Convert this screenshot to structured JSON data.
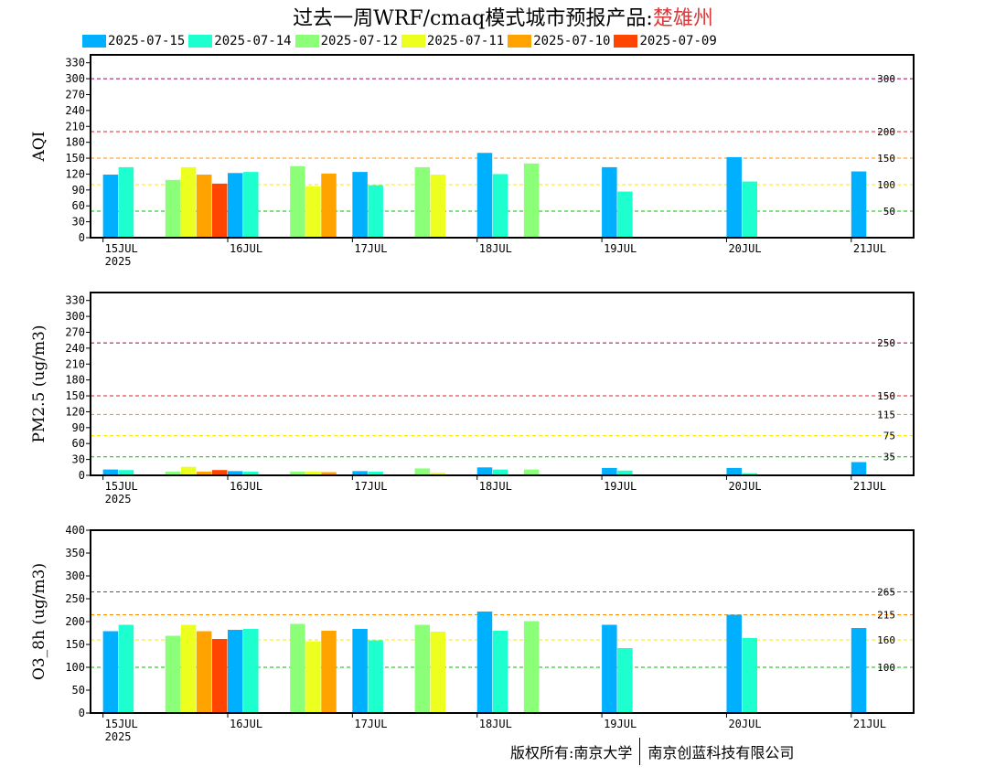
{
  "title": {
    "main": "过去一周WRF/cmaq模式城市预报产品:",
    "city": "楚雄州"
  },
  "legend": [
    {
      "label": "2025-07-15",
      "color": "#00b0ff"
    },
    {
      "label": "2025-07-14",
      "color": "#1effd0"
    },
    {
      "label": "2025-07-12",
      "color": "#8cff78"
    },
    {
      "label": "2025-07-11",
      "color": "#ecff1e"
    },
    {
      "label": "2025-07-10",
      "color": "#ffa300"
    },
    {
      "label": "2025-07-09",
      "color": "#ff4500"
    }
  ],
  "copyright": {
    "left": "版权所有:南京大学",
    "right": "南京创蓝科技有限公司"
  },
  "chart_data": [
    {
      "type": "bar",
      "ylabel": "AQI",
      "ylim": [
        0,
        345
      ],
      "yticks": [
        0,
        30,
        60,
        90,
        120,
        150,
        180,
        210,
        240,
        270,
        300,
        330
      ],
      "xlim": [
        -0.1,
        6.5
      ],
      "xticks": [
        {
          "x": 0,
          "label": "15JUL",
          "sub": "2025"
        },
        {
          "x": 1,
          "label": "16JUL"
        },
        {
          "x": 2,
          "label": "17JUL"
        },
        {
          "x": 3,
          "label": "18JUL"
        },
        {
          "x": 4,
          "label": "19JUL"
        },
        {
          "x": 5,
          "label": "20JUL"
        },
        {
          "x": 6,
          "label": "21JUL"
        }
      ],
      "thresholds": [
        {
          "value": 50,
          "color": "#00c000",
          "label": "50"
        },
        {
          "value": 100,
          "color": "#ffe600",
          "label": "100"
        },
        {
          "value": 150,
          "color": "#ff8c00",
          "label": "150"
        },
        {
          "value": 200,
          "color": "#e02020",
          "label": "200"
        },
        {
          "value": 300,
          "color": "#a0005a",
          "label": "300"
        }
      ],
      "bars": [
        {
          "x": 0.0,
          "series": 0,
          "value": 119
        },
        {
          "x": 0.125,
          "series": 1,
          "value": 133
        },
        {
          "x": 0.5,
          "series": 2,
          "value": 109
        },
        {
          "x": 0.625,
          "series": 3,
          "value": 133
        },
        {
          "x": 0.75,
          "series": 4,
          "value": 119
        },
        {
          "x": 0.875,
          "series": 5,
          "value": 102
        },
        {
          "x": 1.0,
          "series": 0,
          "value": 122
        },
        {
          "x": 1.125,
          "series": 1,
          "value": 124
        },
        {
          "x": 1.5,
          "series": 2,
          "value": 135
        },
        {
          "x": 1.625,
          "series": 3,
          "value": 97
        },
        {
          "x": 1.75,
          "series": 4,
          "value": 121
        },
        {
          "x": 2.0,
          "series": 0,
          "value": 124
        },
        {
          "x": 2.125,
          "series": 1,
          "value": 99
        },
        {
          "x": 2.5,
          "series": 2,
          "value": 133
        },
        {
          "x": 2.625,
          "series": 3,
          "value": 119
        },
        {
          "x": 3.0,
          "series": 0,
          "value": 160
        },
        {
          "x": 3.125,
          "series": 1,
          "value": 120
        },
        {
          "x": 3.375,
          "series": 2,
          "value": 140
        },
        {
          "x": 4.0,
          "series": 0,
          "value": 133
        },
        {
          "x": 4.125,
          "series": 1,
          "value": 87
        },
        {
          "x": 5.0,
          "series": 0,
          "value": 152
        },
        {
          "x": 5.125,
          "series": 1,
          "value": 106
        },
        {
          "x": 6.0,
          "series": 0,
          "value": 125
        }
      ]
    },
    {
      "type": "bar",
      "ylabel": "PM2.5 (ug/m3)",
      "ylim": [
        0,
        345
      ],
      "yticks": [
        0,
        30,
        60,
        90,
        120,
        150,
        180,
        210,
        240,
        270,
        300,
        330
      ],
      "xlim": [
        -0.1,
        6.5
      ],
      "xticks": [
        {
          "x": 0,
          "label": "15JUL",
          "sub": "2025"
        },
        {
          "x": 1,
          "label": "16JUL"
        },
        {
          "x": 2,
          "label": "17JUL"
        },
        {
          "x": 3,
          "label": "18JUL"
        },
        {
          "x": 4,
          "label": "19JUL"
        },
        {
          "x": 5,
          "label": "20JUL"
        },
        {
          "x": 6,
          "label": "21JUL"
        }
      ],
      "thresholds": [
        {
          "value": 35,
          "color": "#00c000",
          "label": "35"
        },
        {
          "value": 75,
          "color": "#ffe600",
          "label": "75"
        },
        {
          "value": 115,
          "color": "#ff8c00",
          "label": "115"
        },
        {
          "value": 150,
          "color": "#e02020",
          "label": "150"
        },
        {
          "value": 250,
          "color": "#a0005a",
          "label": "250"
        }
      ],
      "bars": [
        {
          "x": 0.0,
          "series": 0,
          "value": 11
        },
        {
          "x": 0.125,
          "series": 1,
          "value": 10
        },
        {
          "x": 0.5,
          "series": 2,
          "value": 7
        },
        {
          "x": 0.625,
          "series": 3,
          "value": 16
        },
        {
          "x": 0.75,
          "series": 4,
          "value": 7
        },
        {
          "x": 0.875,
          "series": 5,
          "value": 10
        },
        {
          "x": 1.0,
          "series": 0,
          "value": 8
        },
        {
          "x": 1.125,
          "series": 1,
          "value": 7
        },
        {
          "x": 1.5,
          "series": 2,
          "value": 7
        },
        {
          "x": 1.625,
          "series": 3,
          "value": 7
        },
        {
          "x": 1.75,
          "series": 4,
          "value": 6
        },
        {
          "x": 2.0,
          "series": 0,
          "value": 8
        },
        {
          "x": 2.125,
          "series": 1,
          "value": 7
        },
        {
          "x": 2.5,
          "series": 2,
          "value": 13
        },
        {
          "x": 2.625,
          "series": 3,
          "value": 5
        },
        {
          "x": 3.0,
          "series": 0,
          "value": 15
        },
        {
          "x": 3.125,
          "series": 1,
          "value": 11
        },
        {
          "x": 3.375,
          "series": 2,
          "value": 11
        },
        {
          "x": 4.0,
          "series": 0,
          "value": 14
        },
        {
          "x": 4.125,
          "series": 1,
          "value": 9
        },
        {
          "x": 5.0,
          "series": 0,
          "value": 14
        },
        {
          "x": 5.125,
          "series": 1,
          "value": 4
        },
        {
          "x": 6.0,
          "series": 0,
          "value": 25
        }
      ]
    },
    {
      "type": "bar",
      "ylabel": "O3_8h (ug/m3)",
      "ylim": [
        0,
        400
      ],
      "yticks": [
        0,
        50,
        100,
        150,
        200,
        250,
        300,
        350,
        400
      ],
      "xlim": [
        -0.1,
        6.5
      ],
      "xticks": [
        {
          "x": 0,
          "label": "15JUL",
          "sub": "2025"
        },
        {
          "x": 1,
          "label": "16JUL"
        },
        {
          "x": 2,
          "label": "17JUL"
        },
        {
          "x": 3,
          "label": "18JUL"
        },
        {
          "x": 4,
          "label": "19JUL"
        },
        {
          "x": 5,
          "label": "20JUL"
        },
        {
          "x": 6,
          "label": "21JUL"
        }
      ],
      "thresholds": [
        {
          "value": 100,
          "color": "#00c000",
          "label": "100"
        },
        {
          "value": 160,
          "color": "#ffe600",
          "label": "160"
        },
        {
          "value": 215,
          "color": "#ff8c00",
          "label": "215"
        },
        {
          "value": 265,
          "color": "#e02020",
          "label": "265"
        }
      ],
      "bars": [
        {
          "x": 0.0,
          "series": 0,
          "value": 179
        },
        {
          "x": 0.125,
          "series": 1,
          "value": 193
        },
        {
          "x": 0.5,
          "series": 2,
          "value": 169
        },
        {
          "x": 0.625,
          "series": 3,
          "value": 193
        },
        {
          "x": 0.75,
          "series": 4,
          "value": 179
        },
        {
          "x": 0.875,
          "series": 5,
          "value": 162
        },
        {
          "x": 1.0,
          "series": 0,
          "value": 182
        },
        {
          "x": 1.125,
          "series": 1,
          "value": 184
        },
        {
          "x": 1.5,
          "series": 2,
          "value": 195
        },
        {
          "x": 1.625,
          "series": 3,
          "value": 157
        },
        {
          "x": 1.75,
          "series": 4,
          "value": 180
        },
        {
          "x": 2.0,
          "series": 0,
          "value": 184
        },
        {
          "x": 2.125,
          "series": 1,
          "value": 159
        },
        {
          "x": 2.5,
          "series": 2,
          "value": 193
        },
        {
          "x": 2.625,
          "series": 3,
          "value": 178
        },
        {
          "x": 3.0,
          "series": 0,
          "value": 222
        },
        {
          "x": 3.125,
          "series": 1,
          "value": 180
        },
        {
          "x": 3.375,
          "series": 2,
          "value": 201
        },
        {
          "x": 4.0,
          "series": 0,
          "value": 193
        },
        {
          "x": 4.125,
          "series": 1,
          "value": 142
        },
        {
          "x": 5.0,
          "series": 0,
          "value": 215
        },
        {
          "x": 5.125,
          "series": 1,
          "value": 164
        },
        {
          "x": 6.0,
          "series": 0,
          "value": 186
        }
      ]
    }
  ]
}
